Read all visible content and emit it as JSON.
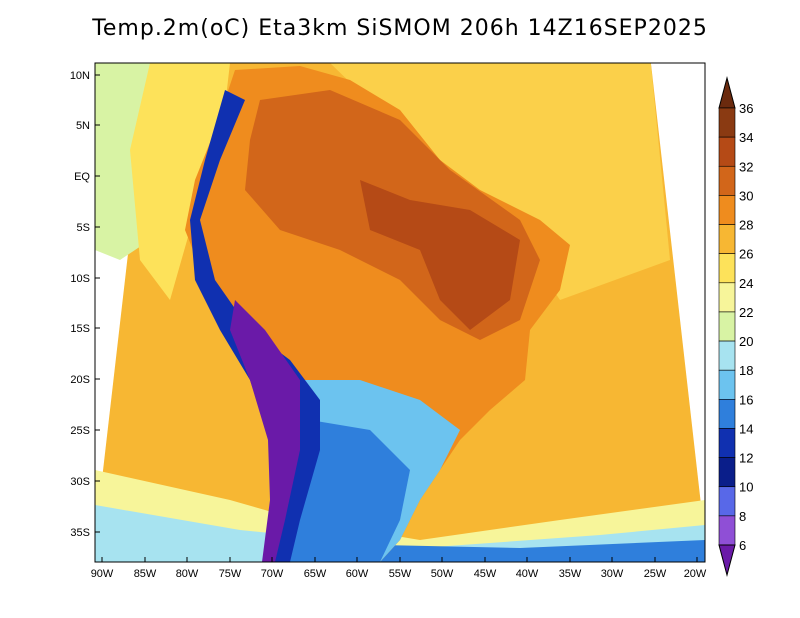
{
  "title": "Temp.2m(oC) Eta3km SiSMOM 206h 14Z16SEP2025",
  "axes": {
    "lat_ticks": [
      "10N",
      "5N",
      "EQ",
      "5S",
      "10S",
      "15S",
      "20S",
      "25S",
      "30S",
      "35S"
    ],
    "lon_ticks": [
      "90W",
      "85W",
      "80W",
      "75W",
      "70W",
      "65W",
      "60W",
      "55W",
      "50W",
      "45W",
      "40W",
      "35W",
      "30W",
      "25W",
      "20W"
    ]
  },
  "colorbar": {
    "labels": [
      "36",
      "34",
      "32",
      "30",
      "28",
      "26",
      "24",
      "22",
      "20",
      "18",
      "16",
      "14",
      "12",
      "10",
      "8",
      "6"
    ],
    "colors": [
      "#6b2a0e",
      "#8a3a12",
      "#b54a16",
      "#d2661a",
      "#ef8c1e",
      "#f7b733",
      "#fde25a",
      "#f7f59a",
      "#d8f3a4",
      "#a7e3f0",
      "#6cc3ef",
      "#2f7fdc",
      "#1030b0",
      "#0a1e8a",
      "#5868e8",
      "#8f4fd6",
      "#6a1aa8"
    ]
  }
}
